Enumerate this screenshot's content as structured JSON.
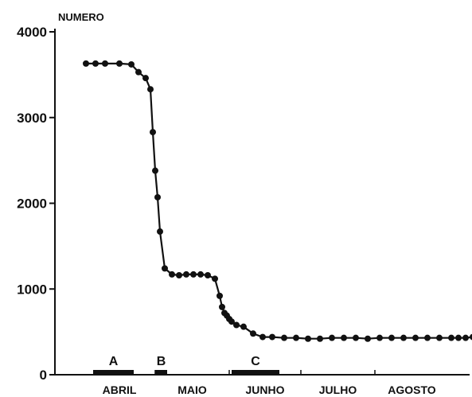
{
  "chart_data": {
    "type": "line",
    "ylabel": "NUMERO",
    "xlabel": "",
    "ylim": [
      0,
      4000
    ],
    "yticks": [
      0,
      1000,
      2000,
      3000,
      4000
    ],
    "ytick_labels": [
      "0",
      "1000",
      "2000",
      "3000",
      "4000"
    ],
    "categories": [
      "ABRIL",
      "MAIO",
      "JUNHO",
      "JULHO",
      "AGOSTO"
    ],
    "grid": false,
    "series": [
      {
        "x": [
          1,
          5,
          9,
          15,
          20,
          23,
          26,
          28,
          29,
          30,
          31,
          32,
          34,
          37,
          40,
          43,
          46,
          49,
          52,
          55,
          57,
          58,
          59,
          60,
          61,
          62,
          64,
          67,
          71,
          75,
          79,
          84,
          89,
          94,
          99,
          104,
          109,
          114,
          119,
          124,
          129,
          134,
          139,
          144,
          149,
          154,
          157,
          160,
          163,
          166,
          168
        ],
        "values": [
          3630,
          3630,
          3630,
          3630,
          3620,
          3530,
          3460,
          3330,
          2830,
          2380,
          2070,
          1670,
          1240,
          1170,
          1160,
          1170,
          1170,
          1170,
          1160,
          1120,
          920,
          790,
          720,
          690,
          650,
          620,
          580,
          560,
          480,
          440,
          440,
          430,
          430,
          420,
          420,
          430,
          430,
          430,
          420,
          430,
          430,
          430,
          430,
          430,
          430,
          430,
          430,
          430,
          440,
          440,
          440
        ]
      }
    ],
    "annotations": [
      {
        "label": "A",
        "from_day": 4,
        "to_day": 21
      },
      {
        "label": "B",
        "from_day": 30,
        "to_day": 35
      },
      {
        "label": "C",
        "from_day": 62,
        "to_day": 82
      }
    ]
  }
}
